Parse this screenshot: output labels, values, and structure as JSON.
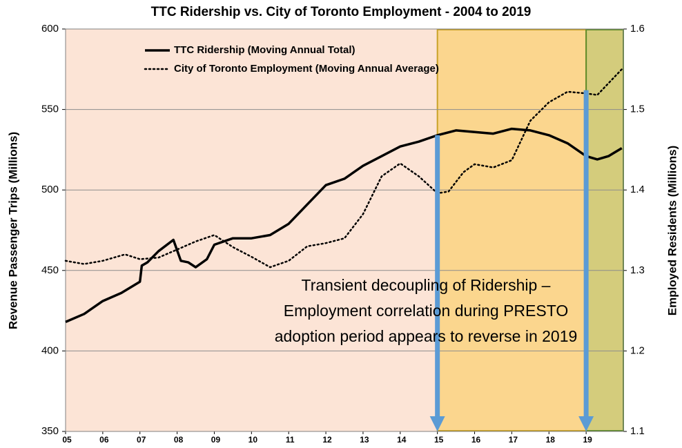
{
  "chart_data": {
    "type": "line",
    "title": "TTC Ridership vs. City of Toronto Employment - 2004 to 2019",
    "y_label": "Revenue Passenger Trips (Millions)",
    "y2_label": "Employed Residents (Millions)",
    "xlim": [
      2005,
      2020
    ],
    "xticks": [
      {
        "value": 2005,
        "label": "05"
      },
      {
        "value": 2006,
        "label": "06"
      },
      {
        "value": 2007,
        "label": "07"
      },
      {
        "value": 2008,
        "label": "08"
      },
      {
        "value": 2009,
        "label": "09"
      },
      {
        "value": 2010,
        "label": "10"
      },
      {
        "value": 2011,
        "label": "11"
      },
      {
        "value": 2012,
        "label": "12"
      },
      {
        "value": 2013,
        "label": "13"
      },
      {
        "value": 2014,
        "label": "14"
      },
      {
        "value": 2015,
        "label": "15"
      },
      {
        "value": 2016,
        "label": "16"
      },
      {
        "value": 2017,
        "label": "17"
      },
      {
        "value": 2018,
        "label": "18"
      },
      {
        "value": 2019,
        "label": "19"
      }
    ],
    "ylim": [
      350,
      600
    ],
    "yticks": [
      350,
      400,
      450,
      500,
      550,
      600
    ],
    "y2lim": [
      1.1,
      1.6
    ],
    "y2ticks": [
      1.1,
      1.2,
      1.3,
      1.4,
      1.5,
      1.6
    ],
    "grid": true,
    "plot_background": "#fce4d6",
    "regions": [
      {
        "from": 2015,
        "to": 2019,
        "color": "#fbd68e",
        "border": "#c9a227"
      },
      {
        "from": 2019,
        "to": 2020,
        "color": "#d4cc7c",
        "border": "#5f8b2a"
      }
    ],
    "series": [
      {
        "name": "TTC Ridership (Moving Annual Total)",
        "color": "#000000",
        "style": "solid",
        "x": [
          2005.0,
          2005.5,
          2006.0,
          2006.5,
          2007.0,
          2007.05,
          2007.2,
          2007.5,
          2007.9,
          2008.1,
          2008.3,
          2008.5,
          2008.8,
          2009.0,
          2009.5,
          2010.0,
          2010.5,
          2011.0,
          2011.5,
          2012.0,
          2012.5,
          2013.0,
          2013.5,
          2014.0,
          2014.5,
          2015.0,
          2015.5,
          2016.0,
          2016.5,
          2017.0,
          2017.5,
          2018.0,
          2018.5,
          2019.0,
          2019.3,
          2019.6,
          2019.96
        ],
        "values": [
          418,
          423,
          431,
          436,
          443,
          453,
          455,
          462,
          469,
          456,
          455,
          452,
          457,
          466,
          470,
          470,
          472,
          479,
          491,
          503,
          507,
          515,
          521,
          527,
          530,
          534,
          537,
          536,
          535,
          538,
          537,
          534,
          529,
          521,
          519,
          521,
          526
        ]
      },
      {
        "name": "City of Toronto Employment (Moving Annual Average)",
        "color": "#000000",
        "style": "dotted",
        "axis": "y2",
        "x": [
          2005.0,
          2005.5,
          2006.0,
          2006.6,
          2007.0,
          2007.5,
          2008.0,
          2008.5,
          2009.0,
          2009.5,
          2010.0,
          2010.5,
          2011.0,
          2011.5,
          2012.0,
          2012.5,
          2013.0,
          2013.5,
          2014.0,
          2014.5,
          2015.0,
          2015.3,
          2015.7,
          2016.0,
          2016.5,
          2017.0,
          2017.5,
          2018.0,
          2018.5,
          2019.0,
          2019.3,
          2019.96
        ],
        "values": [
          1.312,
          1.308,
          1.312,
          1.32,
          1.314,
          1.316,
          1.326,
          1.336,
          1.344,
          1.329,
          1.317,
          1.304,
          1.312,
          1.33,
          1.334,
          1.34,
          1.37,
          1.417,
          1.433,
          1.417,
          1.396,
          1.398,
          1.422,
          1.432,
          1.428,
          1.437,
          1.486,
          1.509,
          1.522,
          1.52,
          1.518,
          1.55
        ]
      }
    ],
    "arrows": [
      {
        "x": 2015,
        "from": 534,
        "color": "#5b9bd5"
      },
      {
        "x": 2019,
        "from": 562,
        "color": "#5b9bd5"
      }
    ],
    "annotation": [
      "Transient decoupling of Ridership –",
      "Employment correlation during PRESTO",
      "adoption period appears to reverse in 2019"
    ]
  }
}
